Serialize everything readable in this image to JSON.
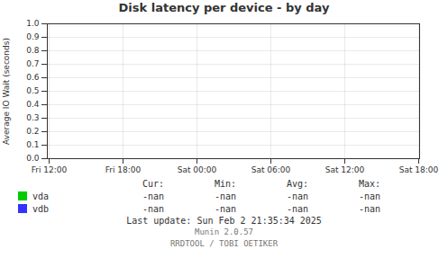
{
  "chart_data": {
    "type": "line",
    "title": "Disk latency per device - by day",
    "y_label": "Average IO Wait (seconds)",
    "categories": [
      "Fri 12:00",
      "Fri 18:00",
      "Sat 00:00",
      "Sat 06:00",
      "Sat 12:00",
      "Sat 18:00"
    ],
    "series": [
      {
        "name": "vda",
        "color": "#00cc00",
        "values": [
          null,
          null,
          null,
          null,
          null,
          null
        ],
        "table": [
          "-nan",
          "-nan",
          "-nan",
          "-nan"
        ]
      },
      {
        "name": "vdb",
        "color": "#3333ff",
        "values": [
          null,
          null,
          null,
          null,
          null,
          null
        ],
        "table": [
          "-nan",
          "-nan",
          "-nan",
          "-nan"
        ]
      }
    ],
    "table_headers": [
      "Cur:",
      "Min:",
      "Avg:",
      "Max:"
    ],
    "ylim": [
      0.0,
      1.0
    ],
    "yticks": [
      {
        "value": 0,
        "label": "0.0"
      },
      0.1,
      0.2,
      0.3,
      0.4,
      0.5,
      0.6,
      0.7,
      0.8,
      0.9,
      {
        "value": 1,
        "label": "1.0"
      }
    ],
    "grid": true,
    "annotations": [
      "Last update: Sun Feb  2 21:35:34 2025",
      "Munin 2.0.57",
      "RRDTOOL / TOBI OETIKER"
    ]
  }
}
